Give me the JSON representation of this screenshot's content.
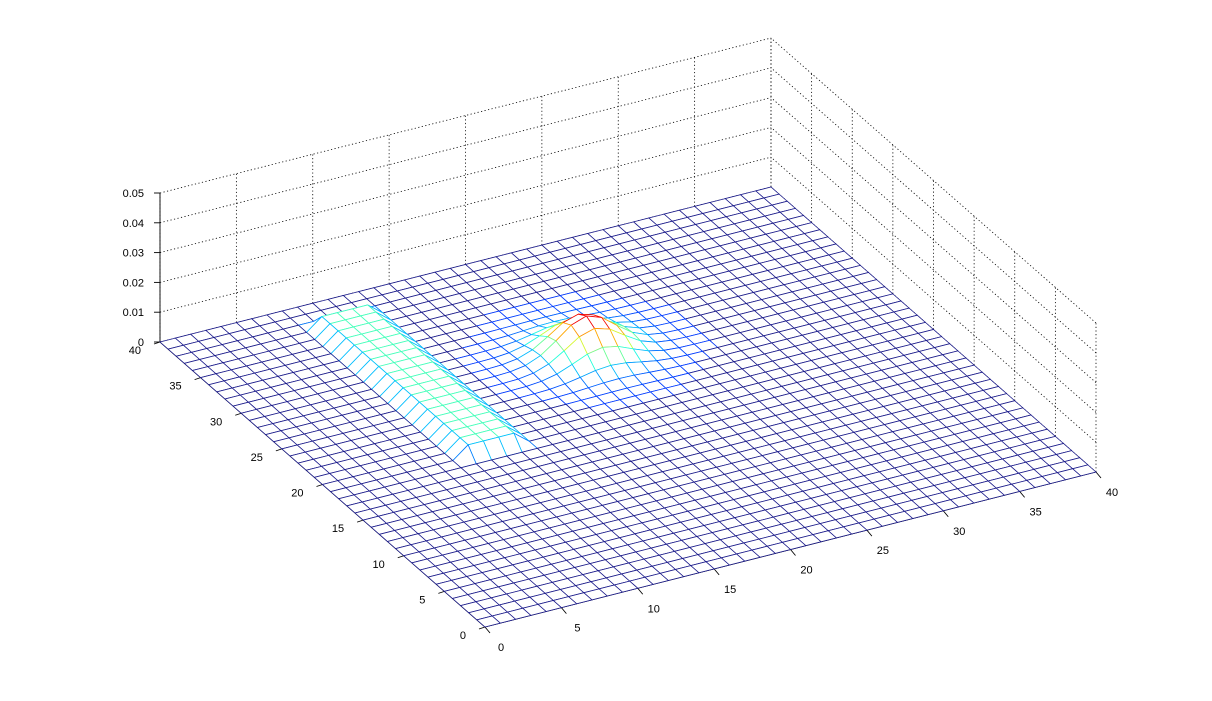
{
  "chart_data": {
    "type": "surface",
    "title": "",
    "xlabel": "",
    "ylabel": "",
    "zlabel": "",
    "xlim": [
      0,
      40
    ],
    "ylim": [
      0,
      40
    ],
    "zlim": [
      0,
      0.05
    ],
    "x_ticks": [
      0,
      5,
      10,
      15,
      20,
      25,
      30,
      35,
      40
    ],
    "x_tick_labels": [
      "0",
      "5",
      "10",
      "15",
      "20",
      "25",
      "30",
      "35",
      "40"
    ],
    "y_ticks": [
      0,
      5,
      10,
      15,
      20,
      25,
      30,
      35,
      40
    ],
    "y_tick_labels": [
      "0",
      "5",
      "10",
      "15",
      "20",
      "25",
      "30",
      "35",
      "40"
    ],
    "z_ticks": [
      0,
      0.01,
      0.02,
      0.03,
      0.04,
      0.05
    ],
    "z_tick_labels": [
      "0",
      "0.01",
      "0.02",
      "0.03",
      "0.04",
      "0.05"
    ],
    "grid": true,
    "mesh_spacing": 1,
    "colormap": "jet",
    "features": [
      {
        "kind": "gaussian_peak",
        "center_x": 21,
        "center_y": 27,
        "sigma": 1.8,
        "peak_z": 0.0125,
        "base_z": 0.0
      },
      {
        "kind": "rectangular_plateau",
        "x_range": [
          9,
          12
        ],
        "y_range": [
          19,
          37
        ],
        "z": 0.004
      }
    ]
  }
}
